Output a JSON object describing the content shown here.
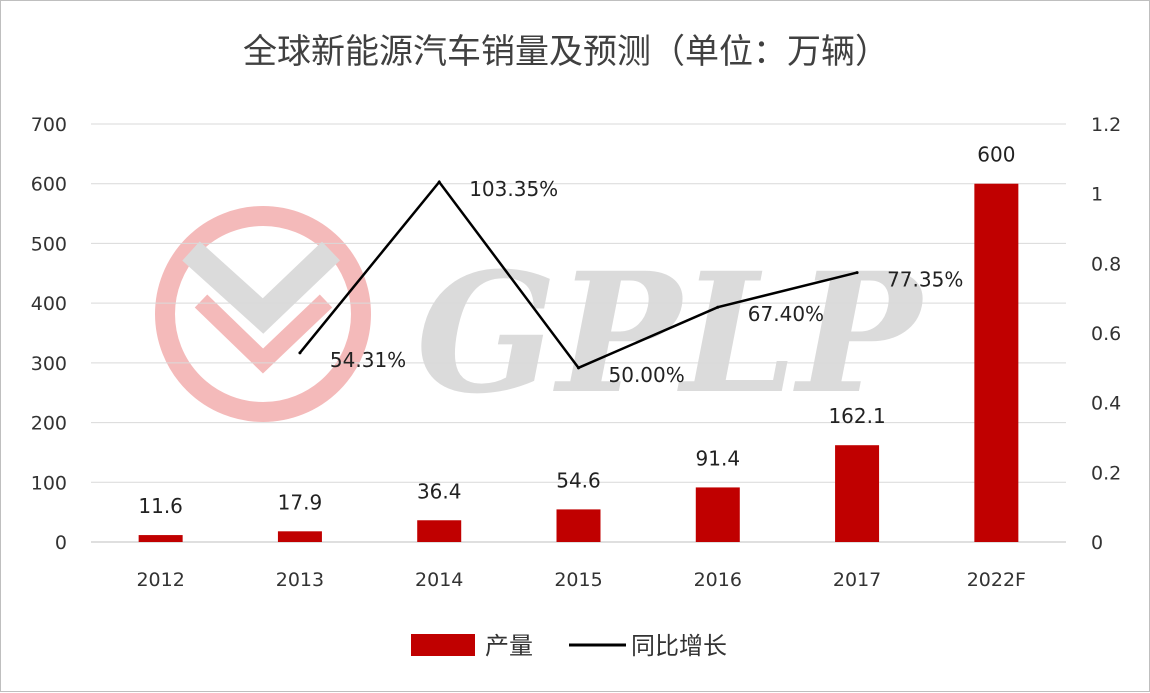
{
  "chart_data": {
    "type": "bar+line",
    "title": "全球新能源汽车销量及预测（单位：万辆）",
    "categories": [
      "2012",
      "2013",
      "2014",
      "2015",
      "2016",
      "2017",
      "2022F"
    ],
    "series": [
      {
        "name": "产量",
        "type": "bar",
        "axis": "left",
        "color": "#c00000",
        "values": [
          11.6,
          17.9,
          36.4,
          54.6,
          91.4,
          162.1,
          600
        ],
        "labels": [
          "11.6",
          "17.9",
          "36.4",
          "54.6",
          "91.4",
          "162.1",
          "600"
        ]
      },
      {
        "name": "同比增长",
        "type": "line",
        "axis": "right",
        "color": "#000000",
        "values": [
          null,
          0.5431,
          1.0335,
          0.5,
          0.674,
          0.7735,
          null
        ],
        "labels": [
          "",
          "54.31%",
          "103.35%",
          "50.00%",
          "67.40%",
          "77.35%",
          ""
        ]
      }
    ],
    "y_left": {
      "range": [
        0,
        700
      ],
      "ticks": [
        "0",
        "100",
        "200",
        "300",
        "400",
        "500",
        "600",
        "700"
      ]
    },
    "y_right": {
      "range": [
        0,
        1.2
      ],
      "ticks": [
        "0",
        "0.2",
        "0.4",
        "0.6",
        "0.8",
        "1",
        "1.2"
      ]
    },
    "grid": true,
    "legend_position": "bottom"
  },
  "watermark": {
    "text": "GPLP"
  }
}
